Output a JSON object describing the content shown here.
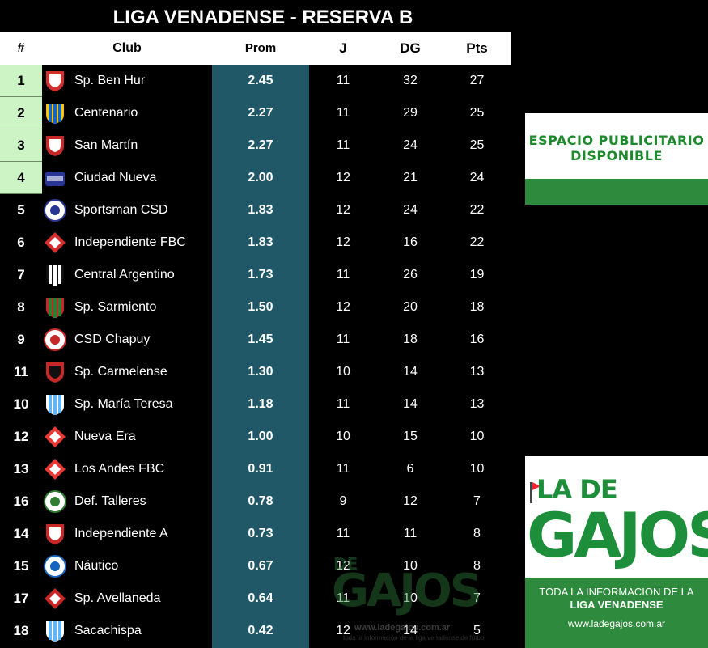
{
  "title": "LIGA VENADENSE - RESERVA B",
  "headers": {
    "pos": "#",
    "club": "Club",
    "prom": "Prom",
    "j": "J",
    "dg": "DG",
    "pts": "Pts"
  },
  "colors": {
    "prom_band": "#215867",
    "top_rank": "#cdf4c5",
    "ad_green": "#2e8b3d"
  },
  "rows": [
    {
      "pos": "1",
      "club": "Sp. Ben Hur",
      "prom": "2.45",
      "j": "11",
      "dg": "32",
      "pts": "27",
      "crest": "crest-ben-hur",
      "c1": "#d32f2f",
      "c2": "#ffffff",
      "shape": "shield"
    },
    {
      "pos": "2",
      "club": "Centenario",
      "prom": "2.27",
      "j": "11",
      "dg": "29",
      "pts": "25",
      "crest": "crest-centenario",
      "c1": "#1565c0",
      "c2": "#f9c400",
      "shape": "stripes"
    },
    {
      "pos": "3",
      "club": "San Martín",
      "prom": "2.27",
      "j": "11",
      "dg": "24",
      "pts": "25",
      "crest": "crest-san-martin",
      "c1": "#c62828",
      "c2": "#ffffff",
      "shape": "shield"
    },
    {
      "pos": "4",
      "club": "Ciudad Nueva",
      "prom": "2.00",
      "j": "12",
      "dg": "21",
      "pts": "24",
      "crest": "crest-ciudad-nueva",
      "c1": "#283593",
      "c2": "#ffffff",
      "shape": "crown"
    },
    {
      "pos": "5",
      "club": "Sportsman CSD",
      "prom": "1.83",
      "j": "12",
      "dg": "24",
      "pts": "22",
      "crest": "crest-sportsman",
      "c1": "#ffffff",
      "c2": "#283593",
      "shape": "circle"
    },
    {
      "pos": "6",
      "club": "Independiente FBC",
      "prom": "1.83",
      "j": "12",
      "dg": "16",
      "pts": "22",
      "crest": "crest-independiente-fbc",
      "c1": "#d32f2f",
      "c2": "#ffffff",
      "shape": "diamond"
    },
    {
      "pos": "7",
      "club": "Central Argentino",
      "prom": "1.73",
      "j": "11",
      "dg": "26",
      "pts": "19",
      "crest": "crest-central-argentino",
      "c1": "#ffffff",
      "c2": "#111111",
      "shape": "stripes"
    },
    {
      "pos": "8",
      "club": "Sp. Sarmiento",
      "prom": "1.50",
      "j": "12",
      "dg": "20",
      "pts": "18",
      "crest": "crest-sarmiento",
      "c1": "#2e7d32",
      "c2": "#c62828",
      "shape": "stripes"
    },
    {
      "pos": "9",
      "club": "CSD Chapuy",
      "prom": "1.45",
      "j": "11",
      "dg": "18",
      "pts": "16",
      "crest": "crest-chapuy",
      "c1": "#ffffff",
      "c2": "#c62828",
      "shape": "circle"
    },
    {
      "pos": "11",
      "club": "Sp. Carmelense",
      "prom": "1.30",
      "j": "10",
      "dg": "14",
      "pts": "13",
      "crest": "crest-carmelense",
      "c1": "#c62828",
      "c2": "#111111",
      "shape": "shield"
    },
    {
      "pos": "10",
      "club": "Sp. María Teresa",
      "prom": "1.18",
      "j": "11",
      "dg": "14",
      "pts": "13",
      "crest": "crest-maria-teresa",
      "c1": "#64b5f6",
      "c2": "#ffffff",
      "shape": "stripes"
    },
    {
      "pos": "12",
      "club": "Nueva Era",
      "prom": "1.00",
      "j": "10",
      "dg": "15",
      "pts": "10",
      "crest": "crest-nueva-era",
      "c1": "#e53935",
      "c2": "#ffffff",
      "shape": "diamond"
    },
    {
      "pos": "13",
      "club": "Los Andes FBC",
      "prom": "0.91",
      "j": "11",
      "dg": "6",
      "pts": "10",
      "crest": "crest-los-andes",
      "c1": "#e53935",
      "c2": "#ffffff",
      "shape": "diamond"
    },
    {
      "pos": "16",
      "club": "Def. Talleres",
      "prom": "0.78",
      "j": "9",
      "dg": "12",
      "pts": "7",
      "crest": "crest-talleres",
      "c1": "#ffffff",
      "c2": "#2e7d32",
      "shape": "circle"
    },
    {
      "pos": "14",
      "club": "Independiente A",
      "prom": "0.73",
      "j": "11",
      "dg": "11",
      "pts": "8",
      "crest": "crest-independiente-a",
      "c1": "#c62828",
      "c2": "#ffffff",
      "shape": "shield"
    },
    {
      "pos": "15",
      "club": "Náutico",
      "prom": "0.67",
      "j": "12",
      "dg": "10",
      "pts": "8",
      "crest": "crest-nautico",
      "c1": "#ffffff",
      "c2": "#1565c0",
      "shape": "circle"
    },
    {
      "pos": "17",
      "club": "Sp. Avellaneda",
      "prom": "0.64",
      "j": "11",
      "dg": "10",
      "pts": "7",
      "crest": "crest-avellaneda",
      "c1": "#c62828",
      "c2": "#ffffff",
      "shape": "diamond"
    },
    {
      "pos": "18",
      "club": "Sacachispa",
      "prom": "0.42",
      "j": "12",
      "dg": "14",
      "pts": "5",
      "crest": "crest-sacachispa",
      "c1": "#64b5f6",
      "c2": "#ffffff",
      "shape": "stripes"
    }
  ],
  "ads": {
    "space": {
      "line1": "ESPACIO PUBLICITARIO",
      "line2": "DISPONIBLE"
    },
    "brand": {
      "la_de": "LA DE",
      "gajos": "GAJOS",
      "tagline1": "TODA LA INFORMACION DE LA",
      "tagline2": "LIGA VENADENSE",
      "url": "www.ladegajos.com.ar"
    }
  },
  "watermark": {
    "de": "DE",
    "gajos": "GAJOS",
    "url": "www.ladegajos.com.ar",
    "tagline": "toda la información de la liga venadense de fútbol"
  }
}
